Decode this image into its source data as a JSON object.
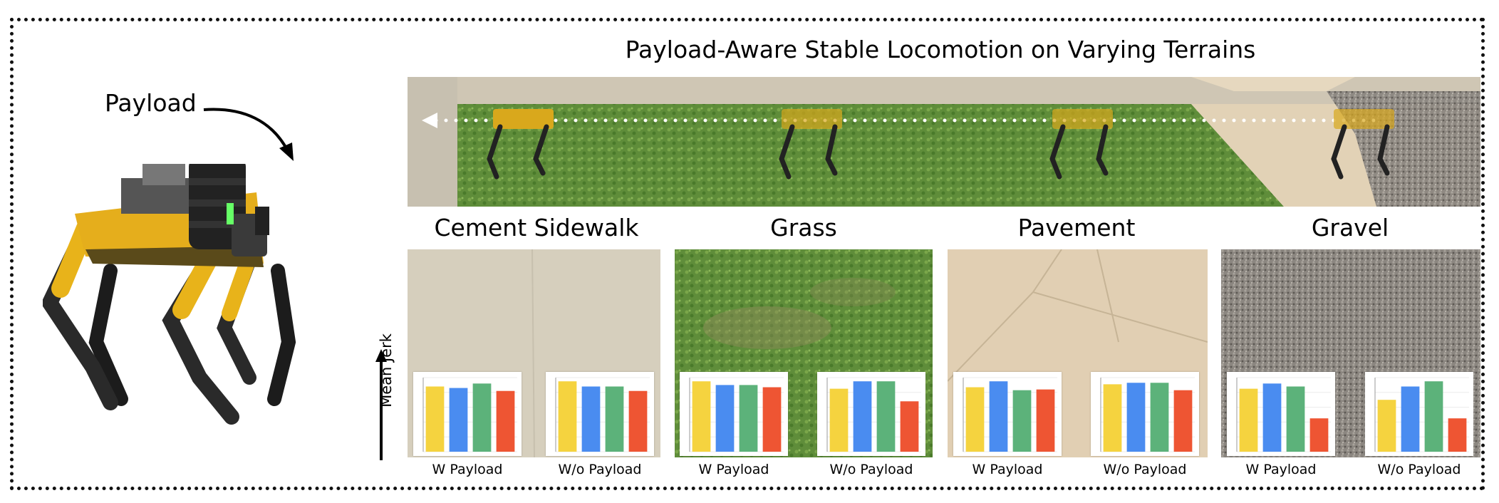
{
  "header": {
    "title": "Payload-Aware Stable Locomotion on Varying Terrains"
  },
  "robot": {
    "payload_label": "Payload"
  },
  "y_axis_label": "Mean Jerk",
  "colors": {
    "yellow": "#F5D33F",
    "blue": "#4A8CF0",
    "green": "#5CB27A",
    "red": "#EE5533"
  },
  "chart_data": [
    {
      "type": "bar",
      "terrain": "Cement Sidewalk",
      "xlabel": "W Payload",
      "values": [
        0.88,
        0.86,
        0.92,
        0.82
      ]
    },
    {
      "type": "bar",
      "terrain": "Cement Sidewalk",
      "xlabel": "W/o Payload",
      "values": [
        0.95,
        0.88,
        0.88,
        0.82
      ]
    },
    {
      "type": "bar",
      "terrain": "Grass",
      "xlabel": "W Payload",
      "values": [
        0.95,
        0.9,
        0.9,
        0.87
      ]
    },
    {
      "type": "bar",
      "terrain": "Grass",
      "xlabel": "W/o Payload",
      "values": [
        0.85,
        0.95,
        0.95,
        0.68
      ]
    },
    {
      "type": "bar",
      "terrain": "Pavement",
      "xlabel": "W Payload",
      "values": [
        0.87,
        0.95,
        0.83,
        0.84
      ]
    },
    {
      "type": "bar",
      "terrain": "Pavement",
      "xlabel": "W/o Payload",
      "values": [
        0.91,
        0.93,
        0.93,
        0.83
      ]
    },
    {
      "type": "bar",
      "terrain": "Gravel",
      "xlabel": "W Payload",
      "values": [
        0.85,
        0.92,
        0.88,
        0.45
      ]
    },
    {
      "type": "bar",
      "terrain": "Gravel",
      "xlabel": "W/o Payload",
      "values": [
        0.7,
        0.88,
        0.95,
        0.45
      ]
    }
  ]
}
